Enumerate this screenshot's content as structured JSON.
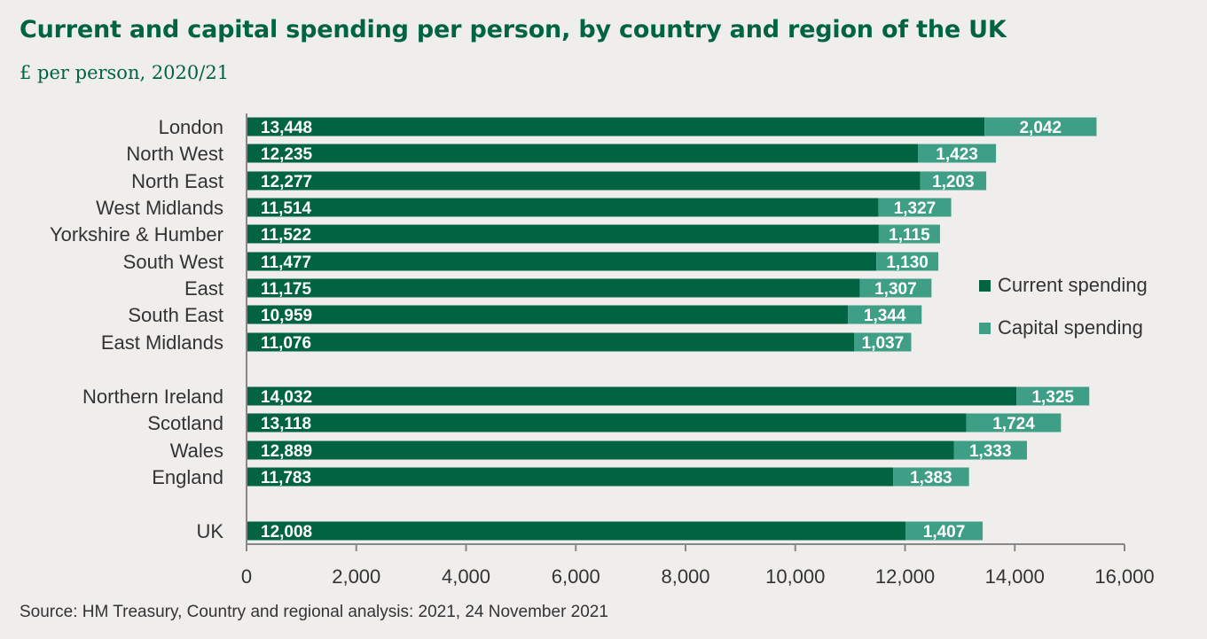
{
  "title": "Current and capital spending per person, by country and region of the UK",
  "subtitle": "£ per person, 2020/21",
  "source": "Source: HM Treasury, Country and regional analysis: 2021, 24 November 2021",
  "colors": {
    "current": "#006443",
    "capital": "#3e9e86",
    "axis": "#888888",
    "text": "#333333",
    "background": "#efeeec"
  },
  "legend": [
    {
      "label": "Current spending",
      "color": "#006443"
    },
    {
      "label": "Capital spending",
      "color": "#3e9e86"
    }
  ],
  "chart_data": {
    "type": "bar",
    "orientation": "horizontal",
    "stacked": true,
    "title": "Current and capital spending per person, by country and region of the UK",
    "subtitle": "£ per person, 2020/21",
    "categories": [
      "London",
      "North West",
      "North East",
      "West Midlands",
      "Yorkshire & Humber",
      "South West",
      "East",
      "South East",
      "East Midlands",
      "Northern Ireland",
      "Scotland",
      "Wales",
      "England",
      "UK"
    ],
    "groups": [
      [
        0,
        1,
        2,
        3,
        4,
        5,
        6,
        7,
        8
      ],
      [
        9,
        10,
        11,
        12
      ],
      [
        13
      ]
    ],
    "series": [
      {
        "name": "Current spending",
        "values": [
          13448,
          12235,
          12277,
          11514,
          11522,
          11477,
          11175,
          10959,
          11076,
          14032,
          13118,
          12889,
          11783,
          12008
        ],
        "labels": [
          "13,448",
          "12,235",
          "12,277",
          "11,514",
          "11,522",
          "11,477",
          "11,175",
          "10,959",
          "11,076",
          "14,032",
          "13,118",
          "12,889",
          "11,783",
          "12,008"
        ]
      },
      {
        "name": "Capital spending",
        "values": [
          2042,
          1423,
          1203,
          1327,
          1115,
          1130,
          1307,
          1344,
          1037,
          1325,
          1724,
          1333,
          1383,
          1407
        ],
        "labels": [
          "2,042",
          "1,423",
          "1,203",
          "1,327",
          "1,115",
          "1,130",
          "1,307",
          "1,344",
          "1,037",
          "1,325",
          "1,724",
          "1,333",
          "1,383",
          "1,407"
        ]
      }
    ],
    "xlim": [
      0,
      16000
    ],
    "xticks": [
      0,
      2000,
      4000,
      6000,
      8000,
      10000,
      12000,
      14000,
      16000
    ],
    "xtick_labels": [
      "0",
      "2,000",
      "4,000",
      "6,000",
      "8,000",
      "10,000",
      "12,000",
      "14,000",
      "16,000"
    ],
    "grid": false,
    "legend_position": "right"
  }
}
